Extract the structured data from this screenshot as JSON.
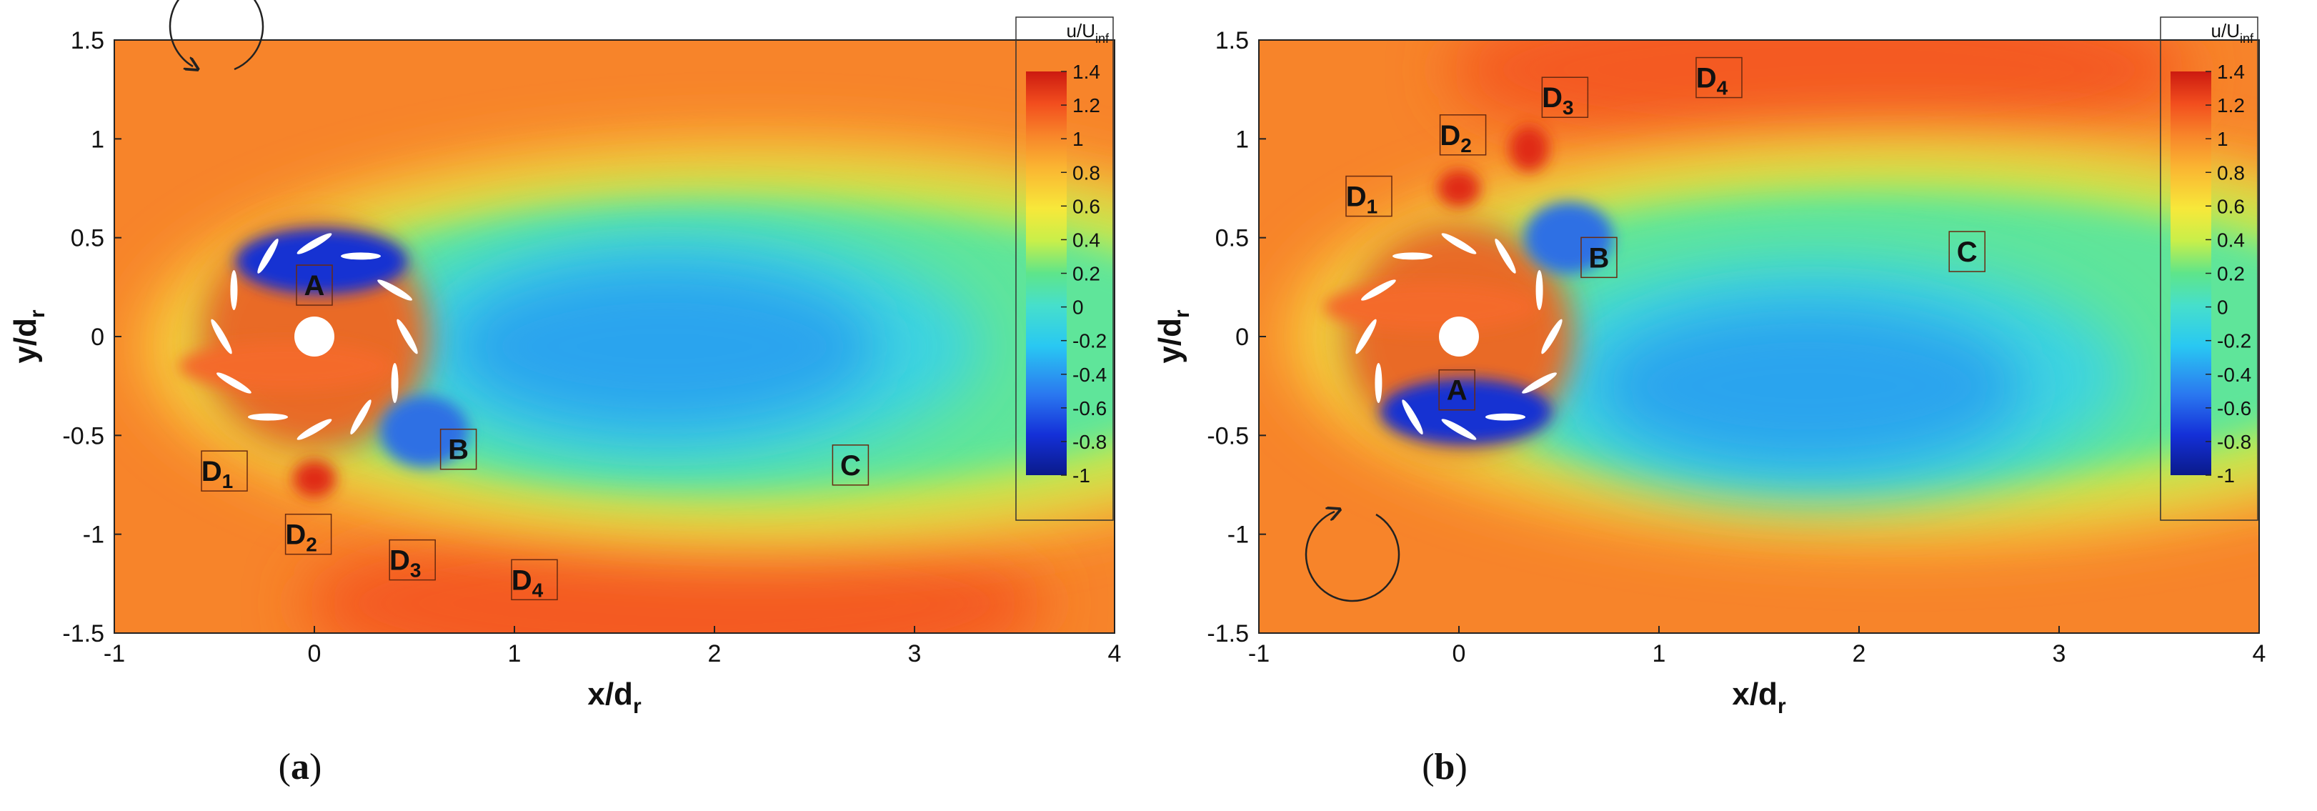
{
  "chart_data": [
    {
      "type": "heatmap",
      "panel_label": "(a)",
      "xlabel": "x/d",
      "xlabel_sub": "r",
      "ylabel": "y/d",
      "ylabel_sub": "r",
      "xlim": [
        -1,
        4
      ],
      "ylim": [
        -1.5,
        1.5
      ],
      "x_ticks": [
        "-1",
        "0",
        "1",
        "2",
        "3",
        "4"
      ],
      "y_ticks": [
        "1.5",
        "1",
        "0.5",
        "0",
        "-0.5",
        "-1",
        "-1.5"
      ],
      "rotation": "counterclockwise",
      "colorbar": {
        "title": "u/U",
        "title_sub": "inf",
        "range": [
          -1,
          1.4
        ],
        "ticks": [
          "1.4",
          "1.2",
          "1",
          "0.8",
          "0.6",
          "0.4",
          "0.2",
          "0",
          "-0.2",
          "-0.4",
          "-0.6",
          "-0.8",
          "-1"
        ]
      },
      "annotations": [
        {
          "text": "A",
          "sub": "",
          "x": 0.0,
          "y": 0.26
        },
        {
          "text": "B",
          "sub": "",
          "x": 0.72,
          "y": -0.57
        },
        {
          "text": "C",
          "sub": "",
          "x": 2.68,
          "y": -0.65
        },
        {
          "text": "D",
          "sub": "1",
          "x": -0.45,
          "y": -0.68
        },
        {
          "text": "D",
          "sub": "2",
          "x": -0.03,
          "y": -1.0
        },
        {
          "text": "D",
          "sub": "3",
          "x": 0.49,
          "y": -1.13
        },
        {
          "text": "D",
          "sub": "4",
          "x": 1.1,
          "y": -1.23
        }
      ]
    },
    {
      "type": "heatmap",
      "panel_label": "(b)",
      "xlabel": "x/d",
      "xlabel_sub": "r",
      "ylabel": "y/d",
      "ylabel_sub": "r",
      "xlim": [
        -1,
        4
      ],
      "ylim": [
        -1.5,
        1.5
      ],
      "x_ticks": [
        "-1",
        "0",
        "1",
        "2",
        "3",
        "4"
      ],
      "y_ticks": [
        "1.5",
        "1",
        "0.5",
        "0",
        "-0.5",
        "-1",
        "-1.5"
      ],
      "rotation": "clockwise",
      "colorbar": {
        "title": "u/U",
        "title_sub": "inf",
        "range": [
          -1,
          1.4
        ],
        "ticks": [
          "1.4",
          "1.2",
          "1",
          "0.8",
          "0.6",
          "0.4",
          "0.2",
          "0",
          "-0.2",
          "-0.4",
          "-0.6",
          "-0.8",
          "-1"
        ]
      },
      "annotations": [
        {
          "text": "A",
          "sub": "",
          "x": -0.01,
          "y": -0.27
        },
        {
          "text": "B",
          "sub": "",
          "x": 0.7,
          "y": 0.4
        },
        {
          "text": "C",
          "sub": "",
          "x": 2.54,
          "y": 0.43
        },
        {
          "text": "D",
          "sub": "1",
          "x": -0.45,
          "y": 0.71
        },
        {
          "text": "D",
          "sub": "2",
          "x": 0.02,
          "y": 1.02
        },
        {
          "text": "D",
          "sub": "3",
          "x": 0.53,
          "y": 1.21
        },
        {
          "text": "D",
          "sub": "4",
          "x": 1.3,
          "y": 1.31
        }
      ]
    }
  ]
}
